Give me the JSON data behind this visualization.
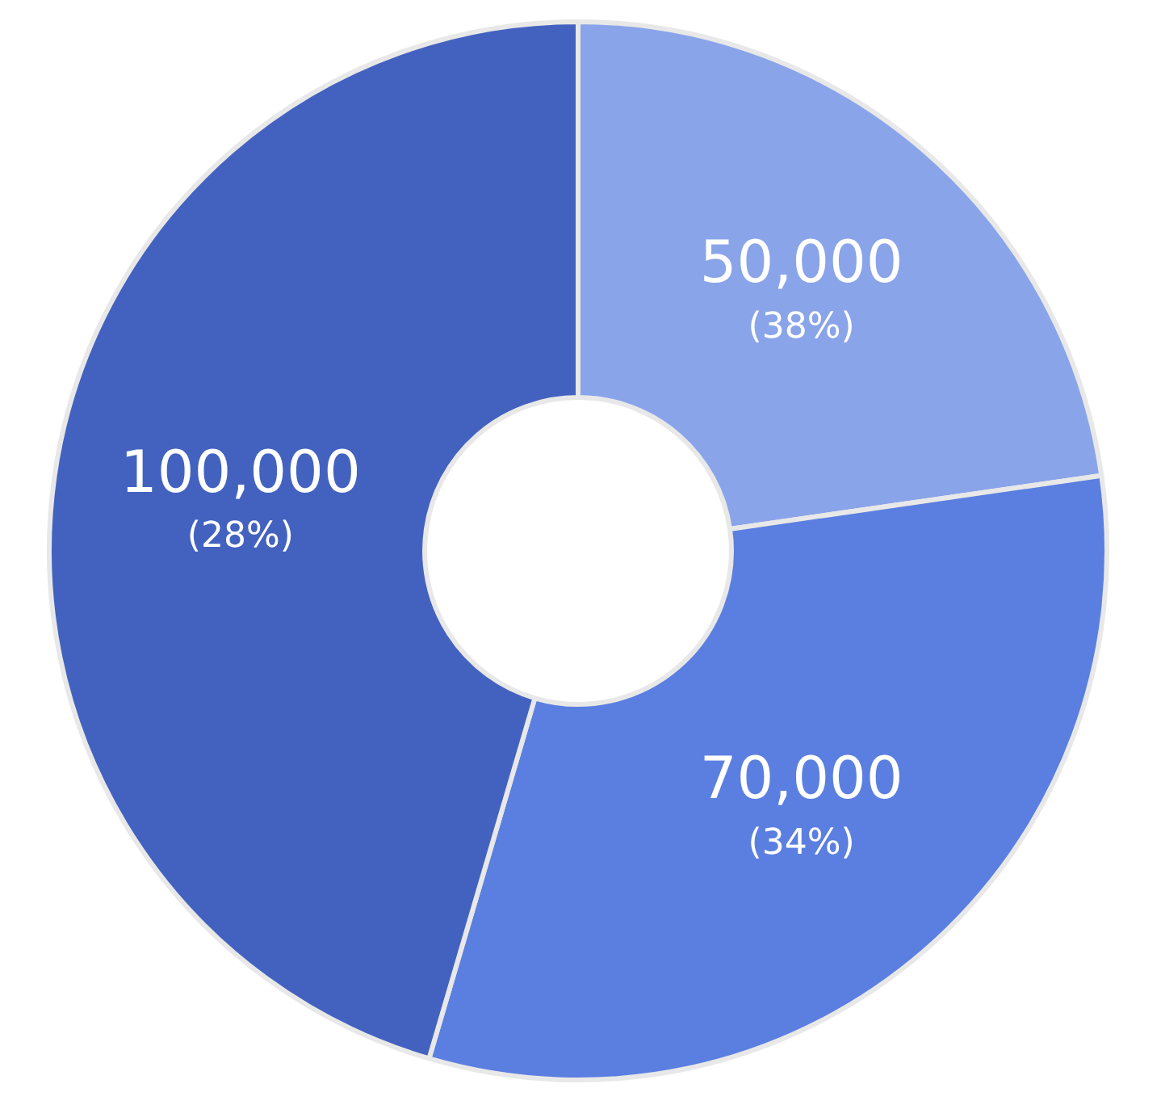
{
  "chart_data": {
    "type": "donut",
    "categories": [
      null,
      null,
      null
    ],
    "values": [
      50000,
      70000,
      100000
    ],
    "colors": [
      "#8aa4ea",
      "#5b7fe0",
      "#4362c0"
    ],
    "value_labels": [
      "50,000\n(38%)",
      "70,000\n(34%)",
      "100,000\n(28%)"
    ]
  }
}
